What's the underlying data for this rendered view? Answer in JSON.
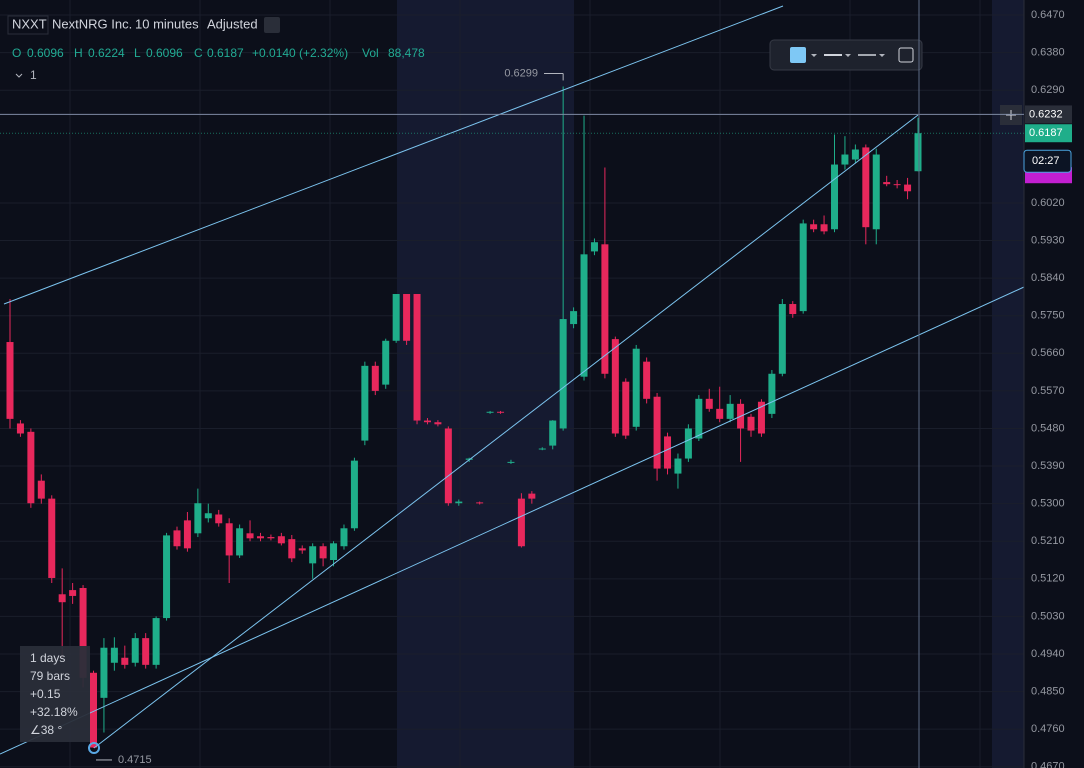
{
  "chart_data": {
    "type": "candlestick",
    "symbol": "NXXT",
    "name": "NextNRG Inc.",
    "interval": "10 minutes",
    "adjustment": "Adjusted",
    "legend": {
      "o": "O",
      "h": "H",
      "l": "L",
      "c": "C",
      "change": "+0.0140 (+2.32%)",
      "vol_label": "Vol",
      "vol": "88,478",
      "pane": "1"
    },
    "up_color": "#1fae8a",
    "down_color": "#e8285c",
    "ylim": [
      0.4667,
      0.6506
    ],
    "yticks": [
      {
        "value": 0.647,
        "label": "0.6470"
      },
      {
        "value": 0.638,
        "label": "0.6380"
      },
      {
        "value": 0.629,
        "label": "0.6290"
      },
      {
        "value": 0.602,
        "label": "0.6020"
      },
      {
        "value": 0.593,
        "label": "0.5930"
      },
      {
        "value": 0.584,
        "label": "0.5840"
      },
      {
        "value": 0.575,
        "label": "0.5750"
      },
      {
        "value": 0.566,
        "label": "0.5660"
      },
      {
        "value": 0.557,
        "label": "0.5570"
      },
      {
        "value": 0.548,
        "label": "0.5480"
      },
      {
        "value": 0.539,
        "label": "0.5390"
      },
      {
        "value": 0.53,
        "label": "0.5300"
      },
      {
        "value": 0.521,
        "label": "0.5210"
      },
      {
        "value": 0.512,
        "label": "0.5120"
      },
      {
        "value": 0.503,
        "label": "0.5030"
      },
      {
        "value": 0.494,
        "label": "0.4940"
      },
      {
        "value": 0.485,
        "label": "0.4850"
      },
      {
        "value": 0.476,
        "label": "0.4760"
      },
      {
        "value": 0.467,
        "label": "0.4670"
      }
    ],
    "crosshair_price": 0.6232,
    "countdown": "02:27",
    "high_marker": 0.6299,
    "low_marker": 0.4715,
    "measure": [
      "1 days",
      "79 bars",
      "+0.15",
      "+32.18%",
      "∠38 °"
    ],
    "ohlc": [
      [
        0.5687,
        0.579,
        0.548,
        0.5503
      ],
      [
        0.5492,
        0.55,
        0.546,
        0.5468
      ],
      [
        0.5472,
        0.548,
        0.529,
        0.5301
      ],
      [
        0.5355,
        0.537,
        0.53,
        0.5312
      ],
      [
        0.5312,
        0.532,
        0.511,
        0.5122
      ],
      [
        0.5083,
        0.5145,
        0.493,
        0.5064
      ],
      [
        0.5093,
        0.511,
        0.506,
        0.5079
      ],
      [
        0.5098,
        0.5105,
        0.486,
        0.4883
      ],
      [
        0.4895,
        0.49,
        0.4715,
        0.4716
      ],
      [
        0.4835,
        0.4978,
        0.4752,
        0.4955
      ],
      [
        0.4919,
        0.498,
        0.49,
        0.4955
      ],
      [
        0.4931,
        0.496,
        0.4905,
        0.4914
      ],
      [
        0.4919,
        0.499,
        0.491,
        0.4978
      ],
      [
        0.4978,
        0.499,
        0.4905,
        0.4914
      ],
      [
        0.4914,
        0.503,
        0.4905,
        0.5026
      ],
      [
        0.5026,
        0.523,
        0.502,
        0.5224
      ],
      [
        0.5236,
        0.5245,
        0.519,
        0.5198
      ],
      [
        0.526,
        0.528,
        0.5185,
        0.5193
      ],
      [
        0.5229,
        0.5336,
        0.522,
        0.5301
      ],
      [
        0.5265,
        0.53,
        0.5255,
        0.5277
      ],
      [
        0.5274,
        0.5285,
        0.5245,
        0.5253
      ],
      [
        0.5253,
        0.5265,
        0.511,
        0.5176
      ],
      [
        0.5176,
        0.525,
        0.517,
        0.5241
      ],
      [
        0.5229,
        0.526,
        0.521,
        0.5217
      ],
      [
        0.5222,
        0.523,
        0.521,
        0.5217
      ],
      [
        0.522,
        0.5226,
        0.5212,
        0.5217
      ],
      [
        0.5222,
        0.523,
        0.52,
        0.5205
      ],
      [
        0.5215,
        0.5225,
        0.516,
        0.5169
      ],
      [
        0.5193,
        0.52,
        0.518,
        0.5188
      ],
      [
        0.5157,
        0.5205,
        0.512,
        0.5198
      ],
      [
        0.5198,
        0.5205,
        0.515,
        0.5169
      ],
      [
        0.5165,
        0.521,
        0.515,
        0.5205
      ],
      [
        0.5198,
        0.525,
        0.519,
        0.5241
      ],
      [
        0.5241,
        0.541,
        0.5235,
        0.5403
      ],
      [
        0.5451,
        0.564,
        0.544,
        0.563
      ],
      [
        0.563,
        0.564,
        0.556,
        0.557
      ],
      [
        0.5585,
        0.5695,
        0.5575,
        0.569
      ],
      [
        0.569,
        0.5802,
        0.5685,
        0.5802
      ],
      [
        0.5802,
        0.5802,
        0.568,
        0.569
      ],
      [
        0.5802,
        0.5802,
        0.549,
        0.5499
      ],
      [
        0.5499,
        0.5505,
        0.549,
        0.5495
      ],
      [
        0.5495,
        0.55,
        0.5485,
        0.549
      ],
      [
        0.548,
        0.5485,
        0.5295,
        0.5301
      ],
      [
        0.5301,
        0.531,
        0.5295,
        0.5305
      ],
      [
        0.5405,
        0.541,
        0.54,
        0.5408
      ],
      [
        0.5303,
        0.5305,
        0.5298,
        0.5301
      ],
      [
        0.5518,
        0.5522,
        0.5515,
        0.552
      ],
      [
        0.552,
        0.5522,
        0.5515,
        0.5518
      ],
      [
        0.54,
        0.5405,
        0.5395,
        0.54
      ],
      [
        0.5312,
        0.5325,
        0.5195,
        0.5198
      ],
      [
        0.5324,
        0.533,
        0.53,
        0.5312
      ],
      [
        0.543,
        0.5435,
        0.5428,
        0.5432
      ],
      [
        0.5439,
        0.55,
        0.543,
        0.5499
      ],
      [
        0.548,
        0.6299,
        0.5475,
        0.5742
      ],
      [
        0.573,
        0.577,
        0.572,
        0.5761
      ],
      [
        0.5604,
        0.6229,
        0.5595,
        0.5897
      ],
      [
        0.5904,
        0.5935,
        0.5895,
        0.5926
      ],
      [
        0.5921,
        0.6105,
        0.56,
        0.5611
      ],
      [
        0.5694,
        0.57,
        0.546,
        0.5468
      ],
      [
        0.5592,
        0.56,
        0.5455,
        0.5463
      ],
      [
        0.5484,
        0.568,
        0.5475,
        0.5671
      ],
      [
        0.564,
        0.565,
        0.554,
        0.5551
      ],
      [
        0.5556,
        0.5565,
        0.5355,
        0.5384
      ],
      [
        0.5461,
        0.547,
        0.537,
        0.5384
      ],
      [
        0.5372,
        0.542,
        0.5336,
        0.5408
      ],
      [
        0.5408,
        0.549,
        0.54,
        0.548
      ],
      [
        0.5456,
        0.556,
        0.545,
        0.5551
      ],
      [
        0.5551,
        0.5575,
        0.552,
        0.5527
      ],
      [
        0.5527,
        0.558,
        0.5495,
        0.5503
      ],
      [
        0.5503,
        0.556,
        0.5495,
        0.5539
      ],
      [
        0.5539,
        0.555,
        0.54,
        0.548
      ],
      [
        0.5508,
        0.5515,
        0.546,
        0.5475
      ],
      [
        0.5544,
        0.555,
        0.546,
        0.5468
      ],
      [
        0.5515,
        0.562,
        0.5505,
        0.5611
      ],
      [
        0.5611,
        0.579,
        0.5605,
        0.5778
      ],
      [
        0.5778,
        0.5785,
        0.5745,
        0.5754
      ],
      [
        0.5761,
        0.598,
        0.5755,
        0.5971
      ],
      [
        0.5969,
        0.598,
        0.595,
        0.5957
      ],
      [
        0.5969,
        0.599,
        0.5945,
        0.5952
      ],
      [
        0.5957,
        0.6184,
        0.595,
        0.6112
      ],
      [
        0.6112,
        0.618,
        0.61,
        0.6136
      ],
      [
        0.6124,
        0.616,
        0.6115,
        0.6148
      ],
      [
        0.6153,
        0.616,
        0.5921,
        0.5962
      ],
      [
        0.5957,
        0.615,
        0.5921,
        0.6136
      ],
      [
        0.607,
        0.6085,
        0.606,
        0.6065
      ],
      [
        0.6065,
        0.6075,
        0.6055,
        0.6064
      ],
      [
        0.6064,
        0.608,
        0.6029,
        0.6048
      ],
      [
        0.6096,
        0.6224,
        0.6096,
        0.6187
      ]
    ]
  }
}
